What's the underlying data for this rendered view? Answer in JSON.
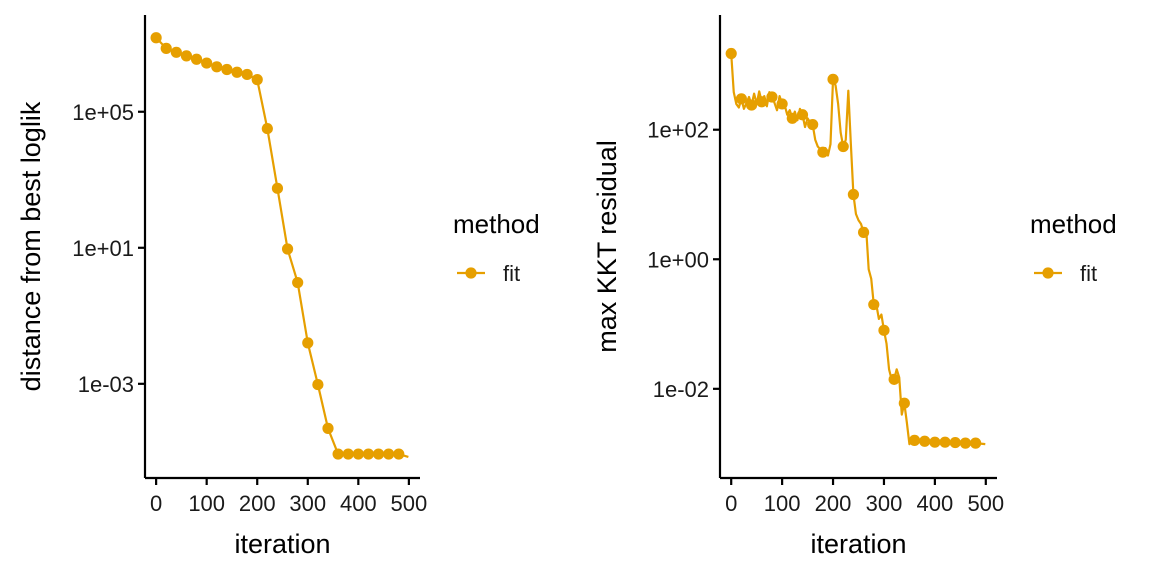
{
  "colors": {
    "series": "#E69F00",
    "axis": "#000000",
    "background": "#ffffff"
  },
  "chart_data": [
    {
      "type": "line",
      "xlabel": "iteration",
      "ylabel": "distance from best loglik",
      "y_scale": "log10",
      "x_ticks": [
        0,
        100,
        200,
        300,
        400,
        500
      ],
      "x_tick_labels": [
        "0",
        "100",
        "200",
        "300",
        "400",
        "500"
      ],
      "y_ticks": [
        0.001,
        10,
        100000
      ],
      "y_tick_labels": [
        "1e-03",
        "1e+01",
        "1e+05"
      ],
      "xlim": [
        -22,
        522
      ],
      "ylim": [
        1.7e-06,
        70000000
      ],
      "legend": {
        "title": "method",
        "position": "right",
        "entries": [
          "fit"
        ]
      },
      "series": [
        {
          "name": "fit",
          "color": "#E69F00",
          "markers": true,
          "points": [
            [
              0,
              15000000
            ],
            [
              20,
              7300000
            ],
            [
              40,
              5600000
            ],
            [
              60,
              4400000
            ],
            [
              80,
              3500000
            ],
            [
              100,
              2700000
            ],
            [
              120,
              2100000
            ],
            [
              140,
              1750000
            ],
            [
              160,
              1450000
            ],
            [
              180,
              1250000
            ],
            [
              200,
              880000
            ],
            [
              220,
              32000
            ],
            [
              240,
              560
            ],
            [
              260,
              9.2
            ],
            [
              280,
              0.95
            ],
            [
              300,
              0.016
            ],
            [
              320,
              0.00095
            ],
            [
              340,
              4.9e-05
            ],
            [
              360,
              8.6e-06
            ],
            [
              380,
              8.6e-06
            ],
            [
              400,
              8.6e-06
            ],
            [
              420,
              8.6e-06
            ],
            [
              440,
              8.6e-06
            ],
            [
              460,
              8.6e-06
            ],
            [
              480,
              8.6e-06
            ],
            [
              499,
              7.1e-06
            ]
          ]
        }
      ]
    },
    {
      "type": "line",
      "xlabel": "iteration",
      "ylabel": "max KKT residual",
      "y_scale": "log10",
      "x_ticks": [
        0,
        100,
        200,
        300,
        400,
        500
      ],
      "x_tick_labels": [
        "0",
        "100",
        "200",
        "300",
        "400",
        "500"
      ],
      "y_ticks": [
        0.01,
        1,
        100
      ],
      "y_tick_labels": [
        "1e-02",
        "1e+00",
        "1e+02"
      ],
      "xlim": [
        -22,
        522
      ],
      "ylim": [
        0.00042,
        5900
      ],
      "legend": {
        "title": "method",
        "position": "right",
        "entries": [
          "fit"
        ]
      },
      "series": [
        {
          "name": "fit",
          "color": "#E69F00",
          "markers": true,
          "points": [
            [
              0,
              1500
            ],
            [
              5,
              380
            ],
            [
              10,
              250
            ],
            [
              15,
              220
            ],
            [
              20,
              300
            ],
            [
              25,
              210
            ],
            [
              30,
              260
            ],
            [
              35,
              320
            ],
            [
              40,
              240
            ],
            [
              45,
              360
            ],
            [
              50,
              250
            ],
            [
              55,
              390
            ],
            [
              60,
              270
            ],
            [
              65,
              330
            ],
            [
              70,
              230
            ],
            [
              75,
              380
            ],
            [
              80,
              320
            ],
            [
              85,
              260
            ],
            [
              90,
              200
            ],
            [
              95,
              330
            ],
            [
              100,
              250
            ],
            [
              105,
              240
            ],
            [
              110,
              170
            ],
            [
              115,
              200
            ],
            [
              120,
              150
            ],
            [
              125,
              190
            ],
            [
              130,
              140
            ],
            [
              135,
              210
            ],
            [
              140,
              170
            ],
            [
              145,
              110
            ],
            [
              150,
              150
            ],
            [
              155,
              130
            ],
            [
              160,
              120
            ],
            [
              165,
              70
            ],
            [
              170,
              55
            ],
            [
              175,
              50
            ],
            [
              180,
              45
            ],
            [
              185,
              52
            ],
            [
              190,
              40
            ],
            [
              195,
              60
            ],
            [
              200,
              600
            ],
            [
              205,
              480
            ],
            [
              210,
              250
            ],
            [
              215,
              90
            ],
            [
              220,
              55
            ],
            [
              225,
              70
            ],
            [
              230,
              400
            ],
            [
              235,
              60
            ],
            [
              240,
              10
            ],
            [
              245,
              5
            ],
            [
              250,
              4
            ],
            [
              255,
              3.5
            ],
            [
              260,
              2.6
            ],
            [
              265,
              3
            ],
            [
              270,
              0.7
            ],
            [
              275,
              0.5
            ],
            [
              280,
              0.2
            ],
            [
              285,
              0.2
            ],
            [
              290,
              0.12
            ],
            [
              295,
              0.14
            ],
            [
              300,
              0.08
            ],
            [
              305,
              0.05
            ],
            [
              310,
              0.02
            ],
            [
              315,
              0.014
            ],
            [
              320,
              0.014
            ],
            [
              325,
              0.02
            ],
            [
              330,
              0.015
            ],
            [
              335,
              0.004
            ],
            [
              340,
              0.006
            ],
            [
              345,
              0.003
            ],
            [
              350,
              0.0014
            ],
            [
              355,
              0.0016
            ],
            [
              360,
              0.0016
            ],
            [
              380,
              0.00155
            ],
            [
              400,
              0.0015
            ],
            [
              420,
              0.0015
            ],
            [
              440,
              0.00148
            ],
            [
              460,
              0.00145
            ],
            [
              480,
              0.00145
            ],
            [
              499,
              0.0014
            ]
          ]
        }
      ]
    }
  ]
}
